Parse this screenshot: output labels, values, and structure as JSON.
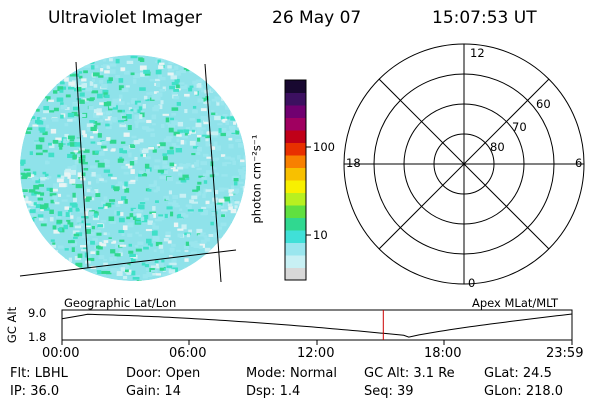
{
  "header": {
    "instrument": "Ultraviolet Imager",
    "date": "26 May 07",
    "time": "15:07:53 UT"
  },
  "colorbar": {
    "unit_label": "photon cm⁻²s⁻¹",
    "ticks": [
      "100",
      "10"
    ],
    "colors": [
      "#d8d8d8",
      "#c8f0f4",
      "#9ae6ee",
      "#40e0d8",
      "#30d890",
      "#60e040",
      "#b8f020",
      "#f8f000",
      "#f8c000",
      "#f88000",
      "#e83000",
      "#c00018",
      "#a00060",
      "#700070",
      "#3c1060",
      "#180830"
    ]
  },
  "polar": {
    "labels": {
      "top": "12",
      "left": "18",
      "right": "6",
      "bottom": "0"
    },
    "ring_labels": [
      "60",
      "70",
      "80"
    ]
  },
  "altitude_plot": {
    "ylabel": "GC Alt",
    "yticks": [
      "9.0",
      "1.8"
    ],
    "left_caption": "Geographic Lat/Lon",
    "right_caption": "Apex MLat/MLT",
    "xticks": [
      "00:00",
      "06:00",
      "12:00",
      "18:00",
      "23:59"
    ],
    "current_time_fraction": 0.63,
    "marker_color": "#cc0000"
  },
  "info": {
    "row1": [
      {
        "label": "Flt:",
        "value": "LBHL"
      },
      {
        "label": "Door:",
        "value": "Open"
      },
      {
        "label": "Mode:",
        "value": "Normal"
      },
      {
        "label": "GC Alt:",
        "value": "3.1 Re"
      },
      {
        "label": "GLat:",
        "value": "24.5"
      }
    ],
    "row2": [
      {
        "label": "IP:",
        "value": "36.0"
      },
      {
        "label": "Gain:",
        "value": "14"
      },
      {
        "label": "Dsp:",
        "value": "1.4"
      },
      {
        "label": "Seq:",
        "value": "39"
      },
      {
        "label": "GLon:",
        "value": "218.0"
      }
    ]
  }
}
